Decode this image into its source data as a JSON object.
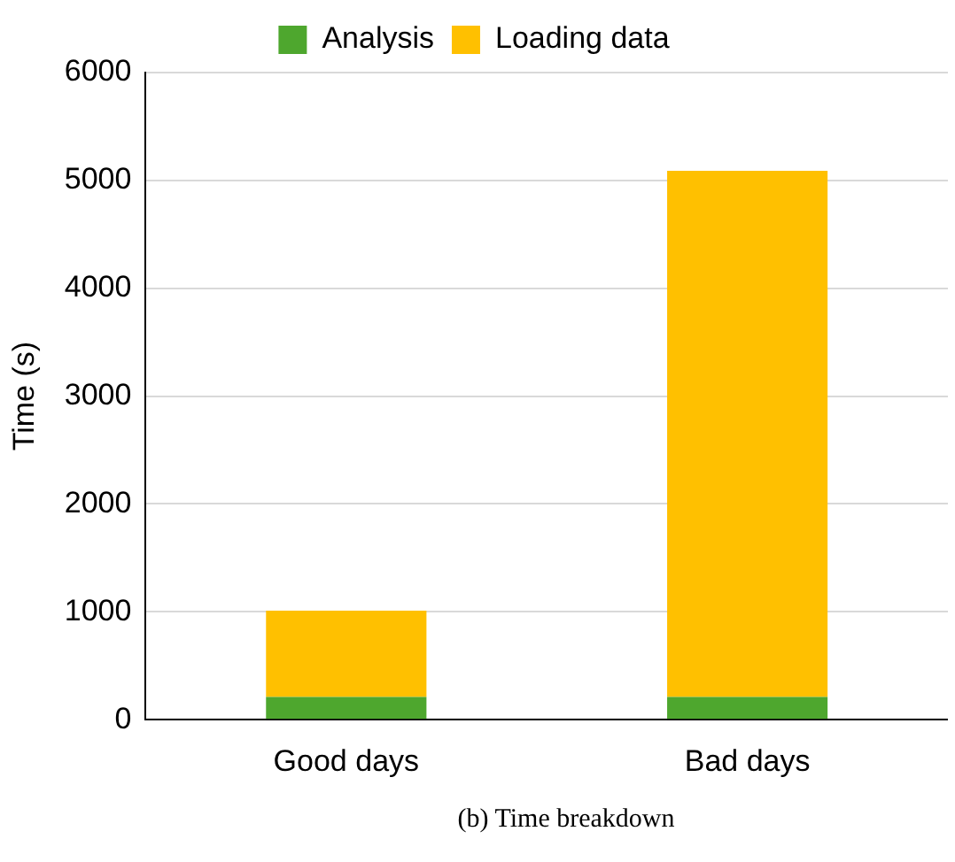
{
  "chart_data": {
    "type": "bar",
    "stacked": true,
    "categories": [
      "Good days",
      "Bad days"
    ],
    "series": [
      {
        "name": "Analysis",
        "color": "#4ea72e",
        "values": [
          210,
          210
        ]
      },
      {
        "name": "Loading data",
        "color": "#ffc000",
        "values": [
          800,
          4880
        ]
      }
    ],
    "ylabel": "Time (s)",
    "ylim": [
      0,
      6000
    ],
    "yticks": [
      0,
      1000,
      2000,
      3000,
      4000,
      5000,
      6000
    ],
    "grid": "y",
    "legend": "top",
    "annotations": [
      "(b) Time breakdown"
    ]
  }
}
